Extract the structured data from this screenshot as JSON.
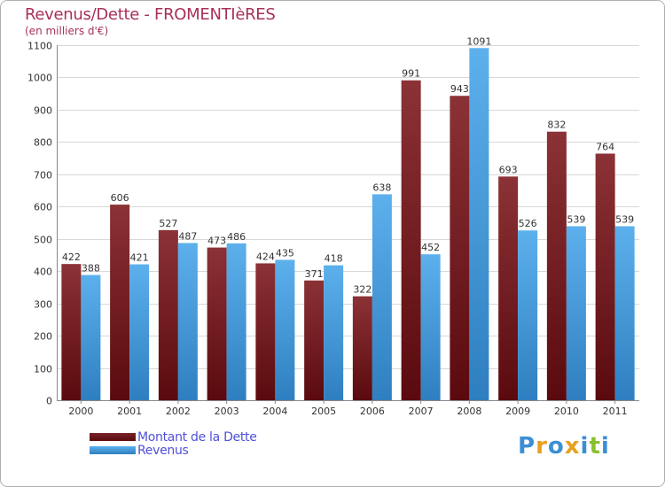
{
  "header": {
    "title": "Revenus/Dette - FROMENTIèRES",
    "subtitle": "(en milliers d'€)"
  },
  "chart_data": {
    "type": "bar",
    "title": "Revenus/Dette - FROMENTIèRES",
    "ylabel": "(en milliers d'€)",
    "xlabel": "",
    "categories": [
      "2000",
      "2001",
      "2002",
      "2003",
      "2004",
      "2005",
      "2006",
      "2007",
      "2008",
      "2009",
      "2010",
      "2011"
    ],
    "series": [
      {
        "name": "Montant de la Dette",
        "values": [
          422,
          606,
          527,
          473,
          424,
          371,
          322,
          991,
          943,
          693,
          832,
          764
        ],
        "color": "#7a2428"
      },
      {
        "name": "Revenus",
        "values": [
          388,
          421,
          487,
          486,
          435,
          418,
          638,
          452,
          1091,
          526,
          539,
          539
        ],
        "color": "#4ea3e0"
      }
    ],
    "ylim": [
      0,
      1100
    ],
    "yticks": [
      0,
      100,
      200,
      300,
      400,
      500,
      600,
      700,
      800,
      900,
      1000,
      1100
    ],
    "grid": true,
    "legend": "bottom-left"
  },
  "legend": {
    "items": [
      {
        "label": "Montant de la Dette",
        "color": "#5a0f12"
      },
      {
        "label": "Revenus",
        "color": "#4ea3e0"
      }
    ]
  },
  "logo": {
    "letters": [
      "P",
      "r",
      "o",
      "x",
      "i",
      "t",
      "i"
    ],
    "colors": [
      "#3c8fd6",
      "#e8a020",
      "#3c8fd6",
      "#e8a020",
      "#3c8fd6",
      "#8ac030",
      "#3c8fd6"
    ]
  }
}
